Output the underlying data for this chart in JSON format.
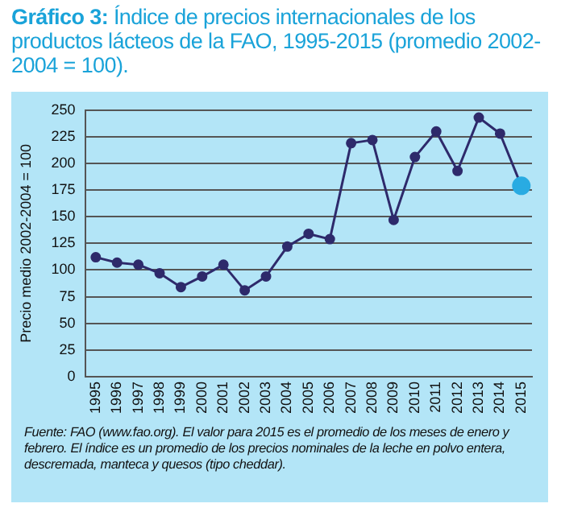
{
  "chart_data": {
    "type": "line",
    "title": "Gráfico 3: Índice de precios internacionales de los productos lácteos de la FAO, 1995-2015 (promedio 2002-2004 = 100).",
    "ylabel": "Precio medio 2002-2004 = 100",
    "categories": [
      "1995",
      "1996",
      "1997",
      "1998",
      "1999",
      "2000",
      "2001",
      "2002",
      "2003",
      "2004",
      "2005",
      "2006",
      "2007",
      "2008",
      "2009",
      "2010",
      "2011",
      "2012",
      "2013",
      "2014",
      "2015"
    ],
    "series": [
      {
        "color": "#2e2a6b",
        "values": [
          112,
          107,
          105,
          97,
          84,
          94,
          105,
          81,
          94,
          122,
          134,
          129,
          219,
          222,
          147,
          206,
          230,
          193,
          243,
          228,
          179
        ],
        "colors": [
          "#2e2a6b",
          "#2e2a6b",
          "#2e2a6b",
          "#2e2a6b",
          "#2e2a6b",
          "#2e2a6b",
          "#2e2a6b",
          "#2e2a6b",
          "#2e2a6b",
          "#2e2a6b",
          "#2e2a6b",
          "#2e2a6b",
          "#2e2a6b",
          "#2e2a6b",
          "#2e2a6b",
          "#2e2a6b",
          "#2e2a6b",
          "#2e2a6b",
          "#2e2a6b",
          "#2e2a6b",
          "#29abe2"
        ]
      }
    ],
    "ylim": [
      0,
      250
    ],
    "yticks": [
      0,
      25,
      50,
      75,
      100,
      125,
      150,
      175,
      200,
      225,
      250
    ],
    "grid": "y",
    "legend": false,
    "marker": "circle",
    "line_style": "solid",
    "annotations": [
      "Fuente: FAO (www.fao.org). El valor para 2015 es el promedio de los meses de enero y febrero. El índice es un promedio de los precios nominales de la leche en polvo entera, descremada, manteca y quesos (tipo cheddar)."
    ]
  }
}
